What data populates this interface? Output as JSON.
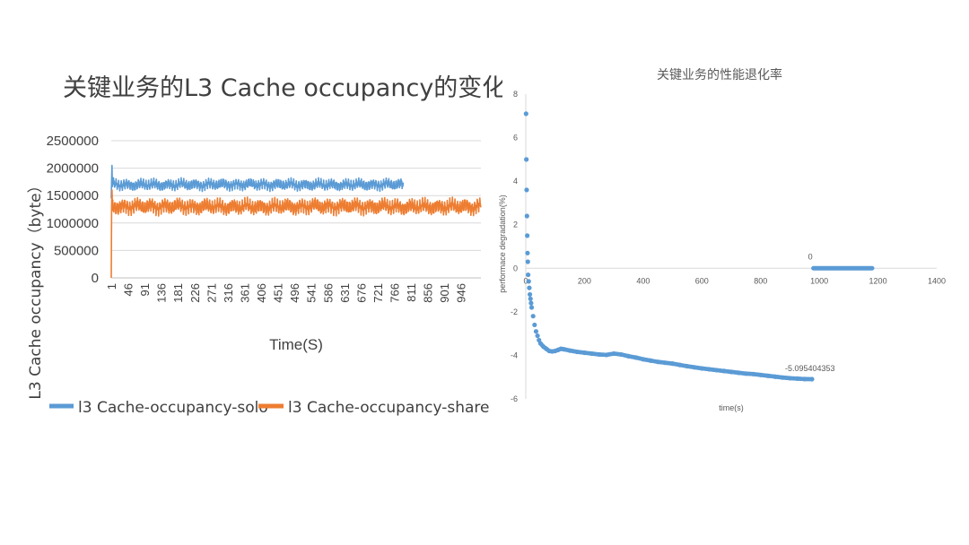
{
  "chart_data": [
    {
      "type": "line",
      "title": "关键业务的L3 Cache occupancy的变化",
      "xlabel": "Time(S)",
      "ylabel": "L3 Cache occupancy（byte）",
      "ylim": [
        0,
        2500000
      ],
      "yticks": [
        "0",
        "500000",
        "1000000",
        "1500000",
        "2000000",
        "2500000"
      ],
      "xticks": [
        "1",
        "46",
        "91",
        "136",
        "181",
        "226",
        "271",
        "316",
        "361",
        "406",
        "451",
        "496",
        "541",
        "586",
        "631",
        "676",
        "721",
        "766",
        "811",
        "856",
        "901",
        "946"
      ],
      "x_count": 1000,
      "grid": true,
      "legend_position": "bottom",
      "colors": {
        "solo": "#5b9bd5",
        "share": "#ed7d31"
      },
      "series": [
        {
          "name": "l3 Cache-occupancy-solo",
          "x_end": 790,
          "start_value": 1450000,
          "mean": 1700000,
          "amplitude": 80000,
          "peak": 2050000
        },
        {
          "name": "l3 Cache-occupancy-share",
          "x_end": 1000,
          "start_value": 0,
          "mean": 1300000,
          "amplitude": 110000,
          "peak": 1600000
        }
      ]
    },
    {
      "type": "scatter",
      "title": "关键业务的性能退化率",
      "xlabel": "time(s)",
      "ylabel": "performace degradation(%)",
      "xlim": [
        0,
        1400
      ],
      "ylim": [
        -6,
        8
      ],
      "xticks": [
        "0",
        "200",
        "400",
        "600",
        "800",
        "1000",
        "1200",
        "1400"
      ],
      "yticks": [
        "8",
        "6",
        "4",
        "2",
        "0",
        "-2",
        "-4",
        "-6"
      ],
      "color": "#5b9bd5",
      "points": [
        [
          1,
          7.1
        ],
        [
          2,
          5.0
        ],
        [
          3,
          3.6
        ],
        [
          4,
          2.4
        ],
        [
          5,
          1.5
        ],
        [
          6,
          0.7
        ],
        [
          7,
          0.3
        ],
        [
          8,
          -0.3
        ],
        [
          10,
          -0.6
        ],
        [
          12,
          -0.9
        ],
        [
          14,
          -1.2
        ],
        [
          16,
          -1.4
        ],
        [
          18,
          -1.6
        ],
        [
          20,
          -1.8
        ],
        [
          25,
          -2.2
        ],
        [
          30,
          -2.6
        ],
        [
          35,
          -2.9
        ],
        [
          40,
          -3.1
        ],
        [
          45,
          -3.3
        ],
        [
          50,
          -3.45
        ],
        [
          60,
          -3.6
        ],
        [
          70,
          -3.7
        ],
        [
          80,
          -3.8
        ],
        [
          90,
          -3.82
        ],
        [
          100,
          -3.8
        ],
        [
          110,
          -3.75
        ],
        [
          120,
          -3.7
        ],
        [
          130,
          -3.72
        ],
        [
          150,
          -3.78
        ],
        [
          175,
          -3.84
        ],
        [
          200,
          -3.88
        ],
        [
          225,
          -3.92
        ],
        [
          250,
          -3.96
        ],
        [
          275,
          -3.98
        ],
        [
          300,
          -3.92
        ],
        [
          325,
          -3.96
        ],
        [
          350,
          -4.04
        ],
        [
          375,
          -4.1
        ],
        [
          400,
          -4.18
        ],
        [
          425,
          -4.24
        ],
        [
          450,
          -4.3
        ],
        [
          475,
          -4.34
        ],
        [
          500,
          -4.38
        ],
        [
          525,
          -4.44
        ],
        [
          550,
          -4.5
        ],
        [
          575,
          -4.55
        ],
        [
          600,
          -4.6
        ],
        [
          625,
          -4.64
        ],
        [
          650,
          -4.68
        ],
        [
          675,
          -4.72
        ],
        [
          700,
          -4.76
        ],
        [
          725,
          -4.8
        ],
        [
          750,
          -4.84
        ],
        [
          775,
          -4.86
        ],
        [
          800,
          -4.9
        ],
        [
          825,
          -4.94
        ],
        [
          850,
          -4.98
        ],
        [
          875,
          -5.02
        ],
        [
          900,
          -5.05
        ],
        [
          925,
          -5.07
        ],
        [
          950,
          -5.09
        ],
        [
          975,
          -5.095
        ]
      ],
      "zero_segment": {
        "x_start": 980,
        "x_end": 1180,
        "y": 0
      },
      "data_labels": [
        {
          "text": "0",
          "x": 1000,
          "y": 0
        },
        {
          "text": "-5.095404353",
          "x": 975,
          "y": -5.095404353
        }
      ]
    }
  ]
}
